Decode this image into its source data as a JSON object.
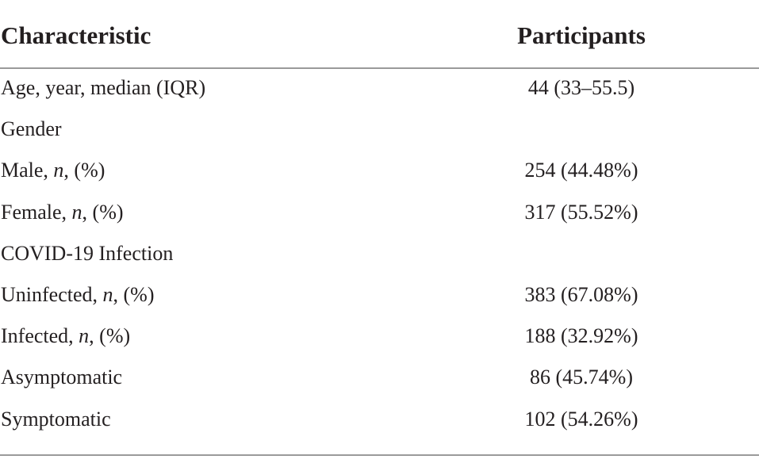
{
  "table": {
    "header": [
      "Characteristic",
      "Participants"
    ],
    "rows": [
      {
        "label": [
          "Age, year, median (IQR)"
        ],
        "value": "44 (33–55.5)"
      },
      {
        "label": [
          "Gender"
        ],
        "value": null
      },
      {
        "label": [
          "Male, ",
          {
            "text": "n",
            "style": "italic"
          },
          ", (%)"
        ],
        "value": "254 (44.48%)"
      },
      {
        "label": [
          "Female, ",
          {
            "text": "n",
            "style": "italic"
          },
          ", (%)"
        ],
        "value": "317 (55.52%)"
      },
      {
        "label": [
          "COVID-19 Infection"
        ],
        "value": null
      },
      {
        "label": [
          "Uninfected, ",
          {
            "text": "n",
            "style": "italic"
          },
          ", (%)"
        ],
        "value": "383 (67.08%)"
      },
      {
        "label": [
          "Infected, ",
          {
            "text": "n",
            "style": "italic"
          },
          ", (%)"
        ],
        "value": "188 (32.92%)"
      },
      {
        "label": [
          "Asymptomatic"
        ],
        "value": "86 (45.74%)"
      },
      {
        "label": [
          "Symptomatic"
        ],
        "value": "102 (54.26%)"
      }
    ]
  }
}
